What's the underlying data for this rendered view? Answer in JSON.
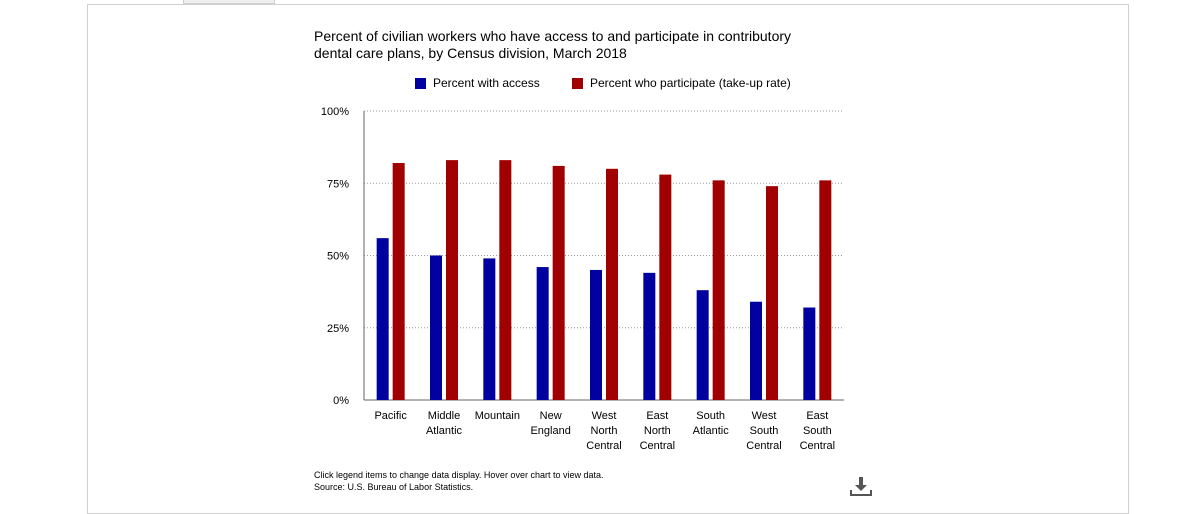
{
  "chart_data": {
    "type": "bar",
    "title": "Percent of civilian workers who have access to and participate in contributory\ndental care plans, by Census division, March 2018",
    "xlabel": "",
    "ylabel": "",
    "ylim": [
      0,
      100
    ],
    "yticks": [
      "0%",
      "25%",
      "50%",
      "75%",
      "100%"
    ],
    "grid": true,
    "legend_position": "top",
    "categories": [
      [
        "Pacific"
      ],
      [
        "Middle",
        "Atlantic"
      ],
      [
        "Mountain"
      ],
      [
        "New",
        "England"
      ],
      [
        "West",
        "North",
        "Central"
      ],
      [
        "East",
        "North",
        "Central"
      ],
      [
        "South",
        "Atlantic"
      ],
      [
        "West",
        "South",
        "Central"
      ],
      [
        "East",
        "South",
        "Central"
      ]
    ],
    "series": [
      {
        "name": "Percent with access",
        "color": "#0000a0",
        "values": [
          56,
          50,
          49,
          46,
          45,
          44,
          38,
          34,
          32
        ]
      },
      {
        "name": "Percent who participate (take-up rate)",
        "color": "#a00000",
        "values": [
          82,
          83,
          83,
          81,
          80,
          78,
          76,
          74,
          76
        ]
      }
    ]
  },
  "footer": {
    "note": "Click legend items to change data display. Hover over chart to view data.",
    "source": "Source: U.S. Bureau of Labor Statistics."
  },
  "icons": {
    "download": "download-icon"
  }
}
